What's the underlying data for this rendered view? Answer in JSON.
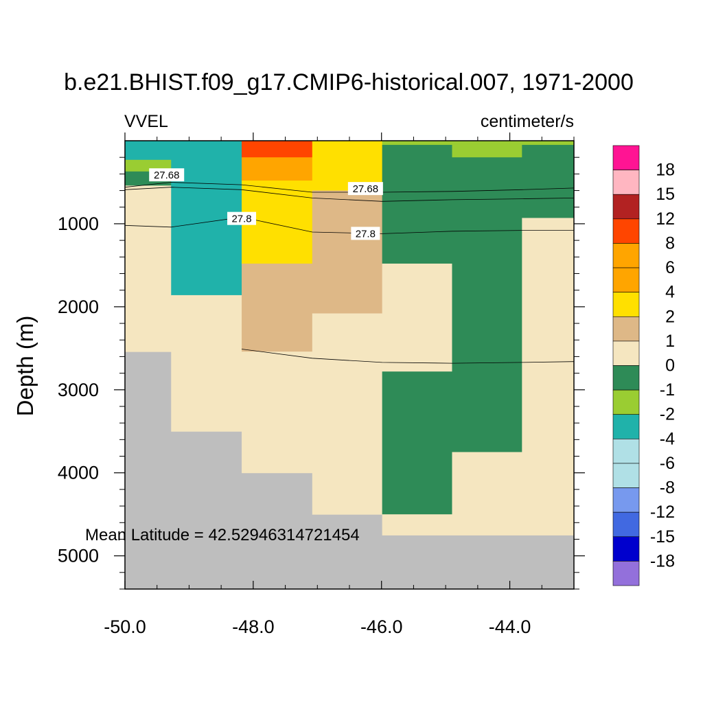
{
  "chart_data": {
    "type": "heatmap",
    "title": "b.e21.BHIST.f09_g17.CMIP6-historical.007, 1971-2000",
    "left_label": "VVEL",
    "right_label": "centimeter/s",
    "xlabel": "",
    "ylabel": "Depth (m)",
    "annotation": "Mean Latitude = 42.52946314721454",
    "xlim": [
      -50.0,
      -43.0
    ],
    "ylim": [
      5400,
      0
    ],
    "x_ticks": [
      -50.0,
      -48.0,
      -46.0,
      -44.0
    ],
    "x_tick_labels": [
      "-50.0",
      "-48.0",
      "-46.0",
      "-44.0"
    ],
    "y_ticks": [
      1000,
      2000,
      3000,
      4000,
      5000
    ],
    "y_tick_labels": [
      "1000",
      "2000",
      "3000",
      "4000",
      "5000"
    ],
    "missing_color": "#BEBEBE",
    "colorbar": {
      "labels": [
        "18",
        "15",
        "12",
        "8",
        "6",
        "4",
        "2",
        "1",
        "0",
        "-1",
        "-2",
        "-4",
        "-6",
        "-8",
        "-12",
        "-15",
        "-18"
      ],
      "colors": [
        "#FF1493",
        "#FFB6C1",
        "#B22222",
        "#FF4500",
        "#FFA500",
        "#FFA500",
        "#FFE000",
        "#DEB887",
        "#F5E6C0",
        "#2E8B57",
        "#9ACD32",
        "#20B2AA",
        "#B0E0E6",
        "#B0E0E6",
        "#7799EE",
        "#4169E1",
        "#0000CD",
        "#9370DB"
      ]
    },
    "columns": [
      {
        "x0": -50.0,
        "x1": -49.28,
        "cells": [
          {
            "d0": 0,
            "d1": 230,
            "color": "#20B2AA"
          },
          {
            "d0": 230,
            "d1": 370,
            "color": "#9ACD32"
          },
          {
            "d0": 370,
            "d1": 540,
            "color": "#2E8B57"
          },
          {
            "d0": 540,
            "d1": 2540,
            "color": "#F5E6C0"
          }
        ]
      },
      {
        "x0": -49.28,
        "x1": -48.18,
        "cells": [
          {
            "d0": 0,
            "d1": 1860,
            "color": "#20B2AA"
          },
          {
            "d0": 1860,
            "d1": 3500,
            "color": "#F5E6C0"
          }
        ]
      },
      {
        "x0": -48.18,
        "x1": -47.08,
        "cells": [
          {
            "d0": 0,
            "d1": 200,
            "color": "#FF4500"
          },
          {
            "d0": 200,
            "d1": 480,
            "color": "#FFA500"
          },
          {
            "d0": 480,
            "d1": 1480,
            "color": "#FFE000"
          },
          {
            "d0": 1480,
            "d1": 2540,
            "color": "#DEB887"
          },
          {
            "d0": 2540,
            "d1": 4000,
            "color": "#F5E6C0"
          }
        ]
      },
      {
        "x0": -47.08,
        "x1": -45.99,
        "cells": [
          {
            "d0": 0,
            "d1": 600,
            "color": "#FFE000"
          },
          {
            "d0": 600,
            "d1": 2080,
            "color": "#DEB887"
          },
          {
            "d0": 2080,
            "d1": 4500,
            "color": "#F5E6C0"
          }
        ]
      },
      {
        "x0": -45.99,
        "x1": -44.9,
        "cells": [
          {
            "d0": 0,
            "d1": 50,
            "color": "#9ACD32"
          },
          {
            "d0": 50,
            "d1": 1480,
            "color": "#2E8B57"
          },
          {
            "d0": 1480,
            "d1": 2780,
            "color": "#F5E6C0"
          },
          {
            "d0": 2780,
            "d1": 4500,
            "color": "#2E8B57"
          },
          {
            "d0": 4500,
            "d1": 4750,
            "color": "#F5E6C0"
          }
        ]
      },
      {
        "x0": -44.9,
        "x1": -43.81,
        "cells": [
          {
            "d0": 0,
            "d1": 50,
            "color": "#9ACD32"
          },
          {
            "d0": 50,
            "d1": 200,
            "color": "#9ACD32"
          },
          {
            "d0": 200,
            "d1": 3750,
            "color": "#2E8B57"
          },
          {
            "d0": 3750,
            "d1": 4750,
            "color": "#F5E6C0"
          }
        ]
      },
      {
        "x0": -43.81,
        "x1": -43.0,
        "cells": [
          {
            "d0": 0,
            "d1": 50,
            "color": "#9ACD32"
          },
          {
            "d0": 50,
            "d1": 930,
            "color": "#2E8B57"
          },
          {
            "d0": 930,
            "d1": 4750,
            "color": "#F5E6C0"
          }
        ]
      }
    ],
    "contours": [
      {
        "level": "27.68",
        "points": [
          [
            -50.0,
            560
          ],
          [
            -49.28,
            500
          ],
          [
            -48.18,
            530
          ],
          [
            -47.08,
            620
          ],
          [
            -45.99,
            620
          ],
          [
            -44.9,
            610
          ],
          [
            -43.81,
            590
          ],
          [
            -43.0,
            570
          ]
        ],
        "label_at": [
          [
            -49.35,
            415
          ],
          [
            -46.25,
            580
          ]
        ]
      },
      {
        "level": "",
        "points": [
          [
            -50.0,
            590
          ],
          [
            -49.28,
            560
          ],
          [
            -48.18,
            590
          ],
          [
            -47.08,
            690
          ],
          [
            -45.99,
            730
          ],
          [
            -44.9,
            710
          ],
          [
            -43.81,
            700
          ],
          [
            -43.0,
            690
          ]
        ],
        "label_at": []
      },
      {
        "level": "27.8",
        "points": [
          [
            -50.0,
            1020
          ],
          [
            -49.28,
            1040
          ],
          [
            -48.18,
            920
          ],
          [
            -47.08,
            1100
          ],
          [
            -45.99,
            1120
          ],
          [
            -44.9,
            1090
          ],
          [
            -43.81,
            1080
          ],
          [
            -43.0,
            1080
          ]
        ],
        "label_at": [
          [
            -48.18,
            940
          ],
          [
            -46.25,
            1120
          ]
        ]
      },
      {
        "level": "",
        "points": [
          [
            -48.18,
            2510
          ],
          [
            -47.08,
            2620
          ],
          [
            -45.99,
            2670
          ],
          [
            -44.9,
            2680
          ],
          [
            -43.81,
            2670
          ],
          [
            -43.0,
            2660
          ]
        ],
        "label_at": []
      }
    ]
  }
}
